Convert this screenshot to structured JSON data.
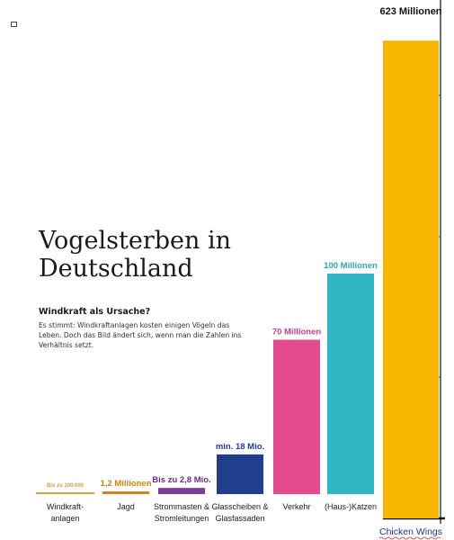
{
  "header": {
    "title_line1": "Vogelsterben in",
    "title_line2": "Deutschland",
    "subtitle": "Windkraft als Ursache?",
    "description": "Es stimmt: Windkraftanlagen kosten einigen Vögeln das Leben. Doch das Bild ändert sich, wenn man die Zahlen ins Verhältnis setzt."
  },
  "chart_data": {
    "type": "bar",
    "title": "Vogelsterben in Deutschland",
    "unit": "Millionen",
    "categories": [
      "Windkraft-\nanlagen",
      "Jagd",
      "Strommasten &\nStromleitungen",
      "Glasscheiben &\nGlasfassaden",
      "Verkehr",
      "(Haus-)Katzen",
      "Chicken Wings"
    ],
    "values": [
      0.1,
      1.2,
      2.8,
      18,
      70,
      100,
      623
    ],
    "value_labels": [
      "Bis zu 100.000",
      "1,2 Millionen",
      "Bis zu 2,8 Mio.",
      "min. 18 Mio.",
      "70 Millionen",
      "100 Millionen",
      "623 Millionen"
    ],
    "colors": [
      "#d9a441",
      "#c8861e",
      "#7b3f96",
      "#1f3e8e",
      "#e54b8f",
      "#30b7c6",
      "#f7b500"
    ],
    "label_colors": [
      "#c9a050",
      "#c8861e",
      "#6a2f88",
      "#1f3e8e",
      "#d23c7e",
      "#2aa8b8",
      "#111111"
    ],
    "scale_note": "first six bars share one scale; the Chicken Wings bar is drawn on a different, larger scale"
  }
}
